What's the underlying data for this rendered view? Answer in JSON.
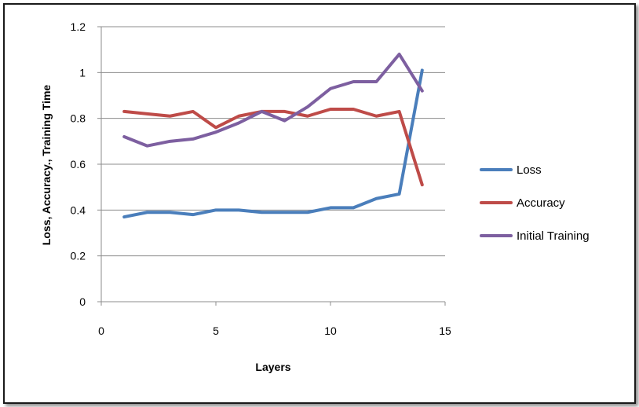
{
  "chart_data": {
    "type": "line",
    "title": "",
    "xlabel": "Layers",
    "ylabel": "Loss, Accuracy.,  Training Time",
    "xlim": [
      0,
      15
    ],
    "ylim": [
      0,
      1.2
    ],
    "xticks": [
      0,
      5,
      10,
      15
    ],
    "xtick_labels": [
      "0",
      "5",
      "10",
      "15"
    ],
    "yticks": [
      0,
      0.2,
      0.4,
      0.6,
      0.8,
      1,
      1.2
    ],
    "ytick_labels": [
      "0",
      "0.2",
      "0.4",
      "0.6",
      "0.8",
      "1",
      "1.2"
    ],
    "grid": "horizontal",
    "legend_position": "right",
    "x": [
      1,
      2,
      3,
      4,
      5,
      6,
      7,
      8,
      9,
      10,
      11,
      12,
      13,
      14
    ],
    "series": [
      {
        "name": "Loss",
        "color": "#4a7ebb",
        "values": [
          0.37,
          0.39,
          0.39,
          0.38,
          0.4,
          0.4,
          0.39,
          0.39,
          0.39,
          0.41,
          0.41,
          0.45,
          0.47,
          1.01
        ]
      },
      {
        "name": "Accuracy",
        "color": "#be4b48",
        "values": [
          0.83,
          0.82,
          0.81,
          0.83,
          0.76,
          0.81,
          0.83,
          0.83,
          0.81,
          0.84,
          0.84,
          0.81,
          0.83,
          0.51
        ]
      },
      {
        "name": "Initial Training",
        "color": "#7d5fa0",
        "values": [
          0.72,
          0.68,
          0.7,
          0.71,
          0.74,
          0.78,
          0.83,
          0.79,
          0.85,
          0.93,
          0.96,
          0.96,
          1.08,
          0.92
        ]
      }
    ]
  }
}
